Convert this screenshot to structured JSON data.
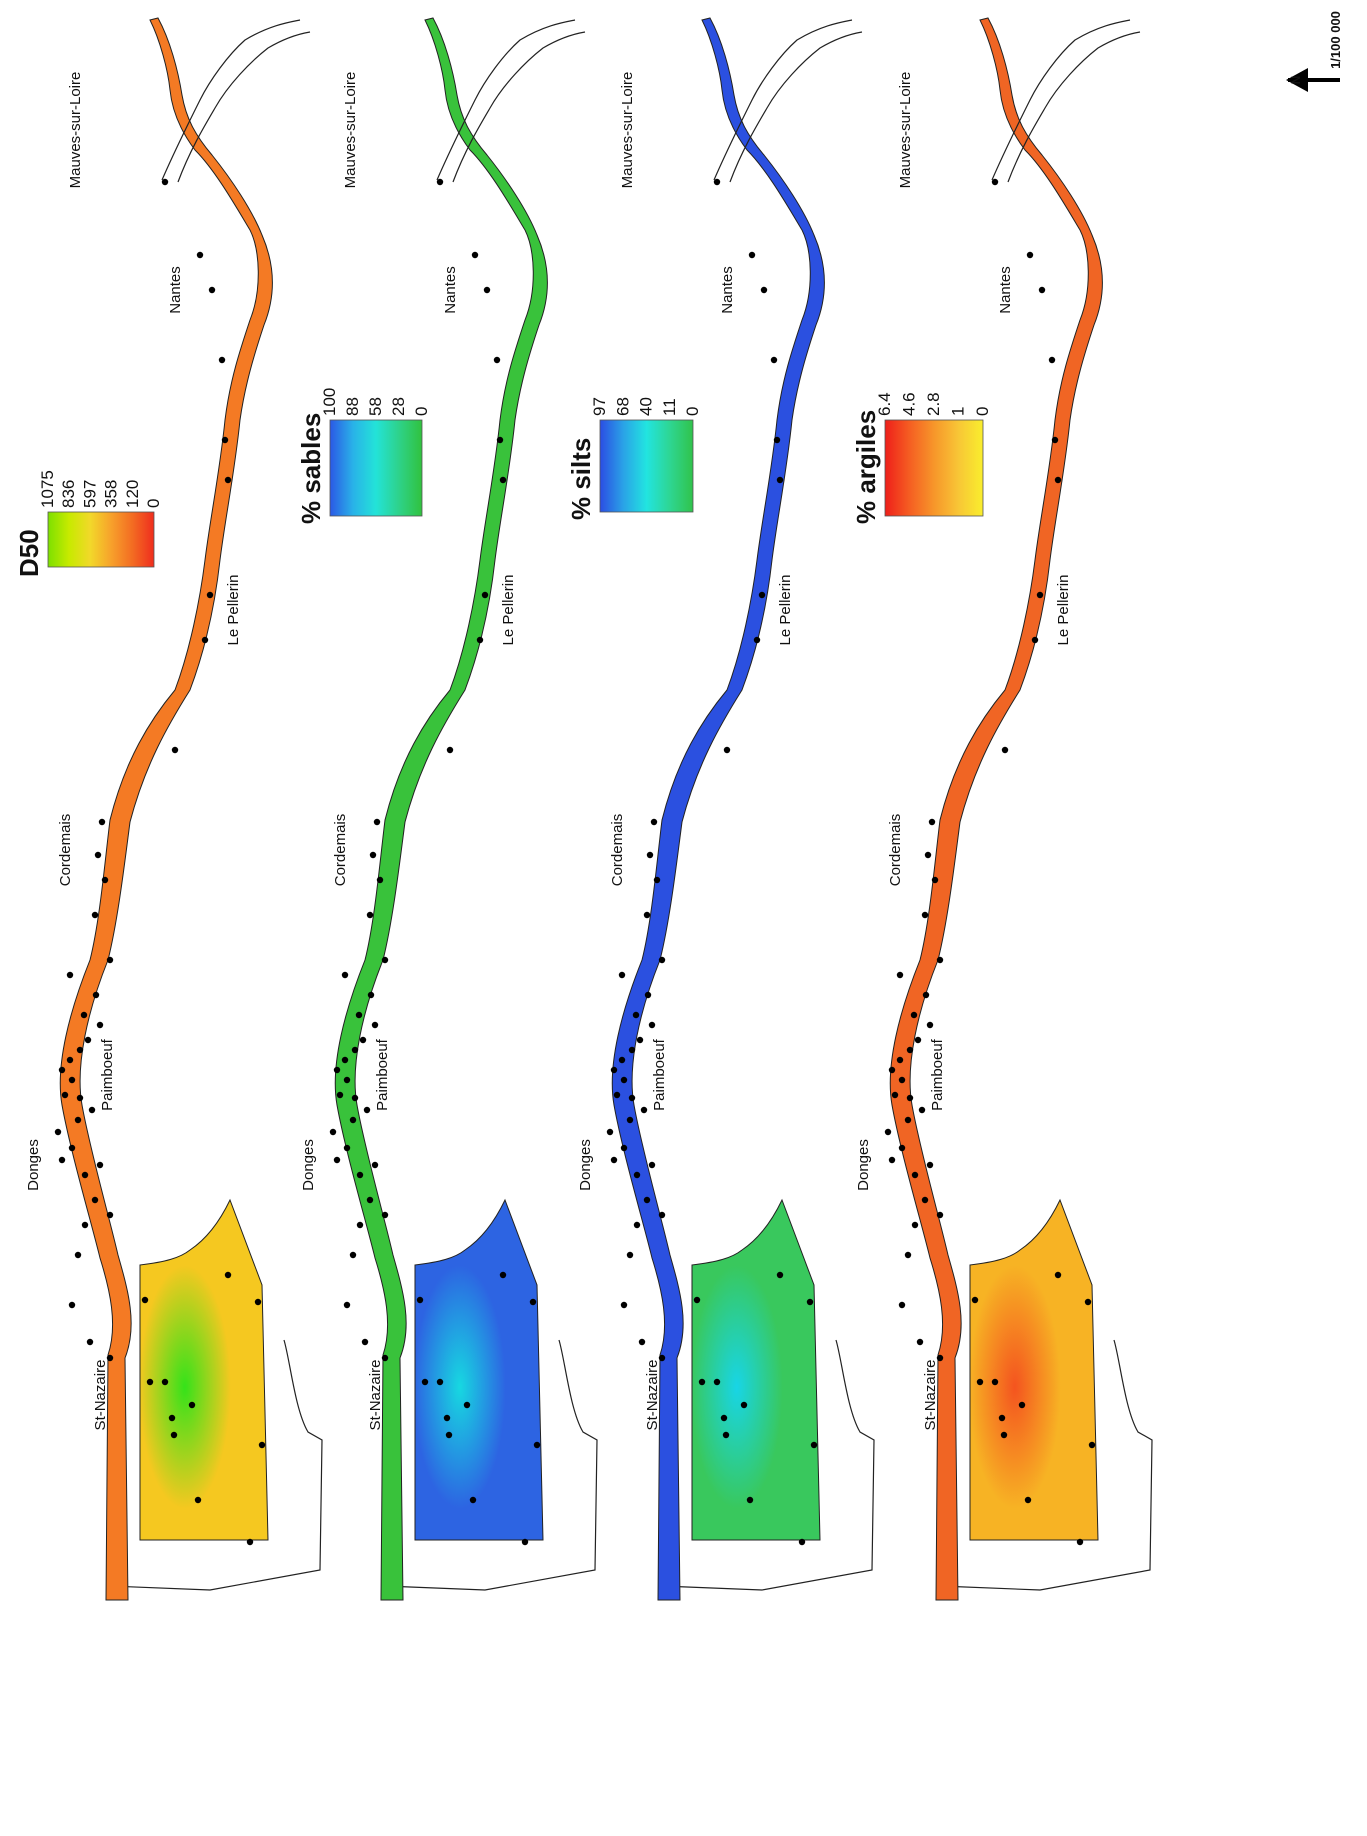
{
  "legend_title_font": "D50",
  "panels": [
    {
      "id": "d50",
      "legend": {
        "title": "D50",
        "ticks": [
          "1075",
          "836",
          "597",
          "358",
          "120",
          "0"
        ],
        "colors": [
          "#7de000",
          "#c8ea00",
          "#f2d82a",
          "#f7a02b",
          "#f36b22",
          "#ef2d1e"
        ]
      },
      "water_color": "#f47a24",
      "bay_colors": [
        "#f5c820",
        "#35e21a"
      ],
      "places": [
        "St-Nazaire",
        "Donges",
        "Paimboeuf",
        "Cordemais",
        "Le Pellerin",
        "Nantes",
        "Mauves-sur-Loire"
      ]
    },
    {
      "id": "sables",
      "legend": {
        "title": "% sables",
        "ticks": [
          "100",
          "88",
          "58",
          "28",
          "0"
        ],
        "colors": [
          "#2b58e5",
          "#29b2e8",
          "#23e3d8",
          "#2ed28a",
          "#31c23e"
        ]
      },
      "water_color": "#39c23b",
      "bay_colors": [
        "#2d64e2",
        "#17d8e1"
      ],
      "places": [
        "St-Nazaire",
        "Donges",
        "Paimboeuf",
        "Cordemais",
        "Le Pellerin",
        "Nantes",
        "Mauves-sur-Loire"
      ]
    },
    {
      "id": "silts",
      "legend": {
        "title": "% silts",
        "ticks": [
          "97",
          "68",
          "40",
          "11",
          "0"
        ],
        "colors": [
          "#2b4de3",
          "#2aa2e7",
          "#22e4e0",
          "#2ed693",
          "#31c34b"
        ]
      },
      "water_color": "#2b50e0",
      "bay_colors": [
        "#39c85d",
        "#18d5e6"
      ],
      "places": [
        "St-Nazaire",
        "Donges",
        "Paimboeuf",
        "Cordemais",
        "Le Pellerin",
        "Nantes",
        "Mauves-sur-Loire"
      ]
    },
    {
      "id": "argiles",
      "legend": {
        "title": "% argiles",
        "ticks": [
          "6.4",
          "4.6",
          "2.8",
          "1",
          "0"
        ],
        "colors": [
          "#ee1f1a",
          "#f55e22",
          "#f7962a",
          "#f8c636",
          "#f9ee2d"
        ]
      },
      "water_color": "#f06524",
      "bay_colors": [
        "#f7b324",
        "#f4541f"
      ],
      "places": [
        "St-Nazaire",
        "Donges",
        "Paimboeuf",
        "Cordemais",
        "Le Pellerin",
        "Nantes",
        "Mauves-sur-Loire"
      ]
    }
  ],
  "north_label": "N",
  "scale_label": "1/100 000"
}
